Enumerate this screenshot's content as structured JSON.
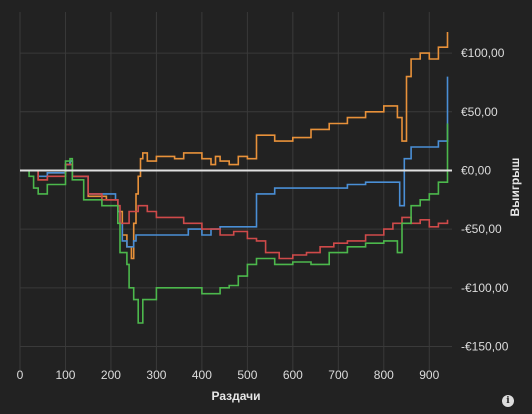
{
  "chart_data": {
    "type": "line",
    "xlabel": "Раздачи",
    "ylabel": "Выигрыш",
    "xlim": [
      0,
      950
    ],
    "ylim": [
      -170,
      135
    ],
    "x_ticks": [
      "0",
      "100",
      "200",
      "300",
      "400",
      "500",
      "600",
      "700",
      "800",
      "900"
    ],
    "y_ticks": [
      {
        "value": 100,
        "label": "€100,00"
      },
      {
        "value": 50,
        "label": "€50,00"
      },
      {
        "value": 0,
        "label": "€0,00"
      },
      {
        "value": -50,
        "label": "-€50,00"
      },
      {
        "value": -100,
        "label": "-€100,00"
      },
      {
        "value": -150,
        "label": "-€150,00"
      }
    ],
    "grid": true,
    "zero_line_color": "#e0e0e0",
    "series": [
      {
        "color": "#e8913a",
        "points": [
          [
            0,
            0
          ],
          [
            30,
            0
          ],
          [
            40,
            -8
          ],
          [
            60,
            -2
          ],
          [
            100,
            5
          ],
          [
            110,
            8
          ],
          [
            115,
            -5
          ],
          [
            150,
            -22
          ],
          [
            190,
            -25
          ],
          [
            215,
            -35
          ],
          [
            225,
            -55
          ],
          [
            235,
            -65
          ],
          [
            245,
            -75
          ],
          [
            250,
            -45
          ],
          [
            255,
            -20
          ],
          [
            260,
            -5
          ],
          [
            265,
            10
          ],
          [
            270,
            15
          ],
          [
            280,
            8
          ],
          [
            300,
            12
          ],
          [
            340,
            10
          ],
          [
            360,
            15
          ],
          [
            400,
            10
          ],
          [
            420,
            5
          ],
          [
            430,
            12
          ],
          [
            440,
            8
          ],
          [
            460,
            5
          ],
          [
            480,
            12
          ],
          [
            500,
            10
          ],
          [
            520,
            30
          ],
          [
            560,
            25
          ],
          [
            600,
            28
          ],
          [
            640,
            35
          ],
          [
            680,
            40
          ],
          [
            720,
            45
          ],
          [
            760,
            50
          ],
          [
            800,
            55
          ],
          [
            830,
            45
          ],
          [
            840,
            25
          ],
          [
            850,
            80
          ],
          [
            860,
            95
          ],
          [
            880,
            100
          ],
          [
            900,
            95
          ],
          [
            920,
            105
          ],
          [
            940,
            118
          ]
        ]
      },
      {
        "color": "#4a8fd6",
        "points": [
          [
            0,
            0
          ],
          [
            30,
            0
          ],
          [
            40,
            -5
          ],
          [
            60,
            -2
          ],
          [
            100,
            5
          ],
          [
            110,
            8
          ],
          [
            115,
            -5
          ],
          [
            150,
            -20
          ],
          [
            180,
            -20
          ],
          [
            210,
            -25
          ],
          [
            215,
            -35
          ],
          [
            220,
            -45
          ],
          [
            225,
            -60
          ],
          [
            235,
            -65
          ],
          [
            250,
            -60
          ],
          [
            255,
            -55
          ],
          [
            270,
            -55
          ],
          [
            300,
            -55
          ],
          [
            330,
            -55
          ],
          [
            370,
            -50
          ],
          [
            400,
            -55
          ],
          [
            420,
            -50
          ],
          [
            440,
            -48
          ],
          [
            450,
            -48
          ],
          [
            480,
            -48
          ],
          [
            500,
            -48
          ],
          [
            520,
            -20
          ],
          [
            540,
            -20
          ],
          [
            560,
            -15
          ],
          [
            580,
            -15
          ],
          [
            610,
            -15
          ],
          [
            640,
            -15
          ],
          [
            680,
            -15
          ],
          [
            720,
            -12
          ],
          [
            760,
            -10
          ],
          [
            800,
            -10
          ],
          [
            820,
            -10
          ],
          [
            835,
            -30
          ],
          [
            845,
            10
          ],
          [
            860,
            20
          ],
          [
            880,
            20
          ],
          [
            900,
            20
          ],
          [
            920,
            25
          ],
          [
            940,
            80
          ]
        ]
      },
      {
        "color": "#cf4a4a",
        "points": [
          [
            0,
            0
          ],
          [
            30,
            0
          ],
          [
            40,
            -8
          ],
          [
            60,
            -5
          ],
          [
            100,
            5
          ],
          [
            110,
            5
          ],
          [
            115,
            -5
          ],
          [
            150,
            -20
          ],
          [
            180,
            -25
          ],
          [
            215,
            -30
          ],
          [
            220,
            -45
          ],
          [
            240,
            -35
          ],
          [
            260,
            -30
          ],
          [
            280,
            -35
          ],
          [
            300,
            -40
          ],
          [
            330,
            -40
          ],
          [
            360,
            -45
          ],
          [
            400,
            -50
          ],
          [
            440,
            -55
          ],
          [
            470,
            -52
          ],
          [
            500,
            -58
          ],
          [
            520,
            -60
          ],
          [
            540,
            -70
          ],
          [
            570,
            -75
          ],
          [
            600,
            -72
          ],
          [
            630,
            -70
          ],
          [
            660,
            -65
          ],
          [
            690,
            -62
          ],
          [
            720,
            -60
          ],
          [
            760,
            -55
          ],
          [
            800,
            -50
          ],
          [
            820,
            -45
          ],
          [
            840,
            -40
          ],
          [
            860,
            -45
          ],
          [
            880,
            -42
          ],
          [
            900,
            -48
          ],
          [
            920,
            -45
          ],
          [
            940,
            -42
          ]
        ]
      },
      {
        "color": "#4cb84c",
        "points": [
          [
            0,
            0
          ],
          [
            20,
            -5
          ],
          [
            30,
            -15
          ],
          [
            40,
            -20
          ],
          [
            60,
            -12
          ],
          [
            100,
            8
          ],
          [
            110,
            10
          ],
          [
            115,
            -8
          ],
          [
            140,
            -25
          ],
          [
            180,
            -30
          ],
          [
            215,
            -45
          ],
          [
            220,
            -70
          ],
          [
            235,
            -80
          ],
          [
            240,
            -100
          ],
          [
            250,
            -110
          ],
          [
            260,
            -130
          ],
          [
            270,
            -110
          ],
          [
            300,
            -100
          ],
          [
            330,
            -100
          ],
          [
            360,
            -100
          ],
          [
            400,
            -105
          ],
          [
            440,
            -100
          ],
          [
            460,
            -98
          ],
          [
            480,
            -90
          ],
          [
            500,
            -80
          ],
          [
            520,
            -75
          ],
          [
            560,
            -80
          ],
          [
            600,
            -78
          ],
          [
            640,
            -80
          ],
          [
            680,
            -70
          ],
          [
            720,
            -65
          ],
          [
            760,
            -62
          ],
          [
            800,
            -60
          ],
          [
            820,
            -60
          ],
          [
            830,
            -70
          ],
          [
            840,
            -45
          ],
          [
            860,
            -30
          ],
          [
            880,
            -25
          ],
          [
            900,
            -20
          ],
          [
            920,
            -10
          ],
          [
            940,
            40
          ]
        ]
      }
    ]
  },
  "info_icon": "info-icon"
}
